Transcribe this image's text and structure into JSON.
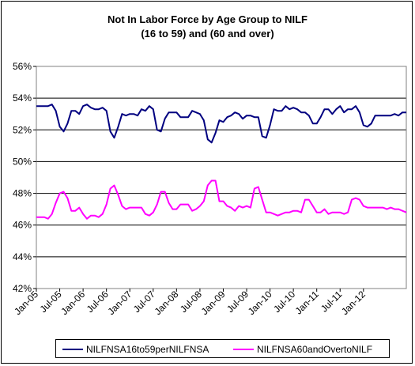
{
  "chart_data": {
    "type": "line",
    "title": "Not In Labor Force by Age Group to NILF",
    "subtitle": "(16 to 59) and (60 and over)",
    "xlabel": "",
    "ylabel": "",
    "ylim": [
      42,
      56
    ],
    "y_ticks": [
      "42%",
      "44%",
      "46%",
      "48%",
      "50%",
      "52%",
      "54%",
      "56%"
    ],
    "x_ticks": [
      "Jan-05",
      "Jul-05",
      "Jan-06",
      "Jul-06",
      "Jan-07",
      "Jul-07",
      "Jan-08",
      "Jul-08",
      "Jan-09",
      "Jul-09",
      "Jan-10",
      "Jul-10",
      "Jan-11",
      "Jul-11",
      "Jan-12"
    ],
    "grid": "horizontal",
    "legend_position": "bottom",
    "series": [
      {
        "name": "NILFNSA16to59perNILFNSA",
        "color": "#000080",
        "values": [
          53.5,
          53.5,
          53.5,
          53.5,
          53.6,
          53.2,
          52.2,
          51.9,
          52.4,
          53.2,
          53.2,
          53.0,
          53.5,
          53.6,
          53.4,
          53.3,
          53.3,
          53.4,
          53.2,
          51.9,
          51.5,
          52.2,
          53.0,
          52.9,
          53.0,
          53.0,
          52.9,
          53.3,
          53.2,
          53.5,
          53.3,
          52.0,
          51.9,
          52.7,
          53.1,
          53.1,
          53.1,
          52.8,
          52.8,
          52.8,
          53.2,
          53.1,
          53.0,
          52.6,
          51.4,
          51.2,
          51.8,
          52.6,
          52.5,
          52.8,
          52.9,
          53.1,
          53.0,
          52.7,
          52.9,
          52.9,
          52.8,
          52.8,
          51.6,
          51.5,
          52.3,
          53.3,
          53.2,
          53.2,
          53.5,
          53.3,
          53.4,
          53.3,
          53.1,
          53.1,
          52.9,
          52.4,
          52.4,
          52.8,
          53.3,
          53.3,
          53.0,
          53.3,
          53.5,
          53.1,
          53.3,
          53.3,
          53.5,
          53.1,
          52.3,
          52.2,
          52.4,
          52.9,
          52.9,
          52.9,
          52.9,
          52.9,
          53.0,
          52.9,
          53.1,
          53.1
        ]
      },
      {
        "name": "NILFNSA60andOvertoNILF",
        "color": "#FF00FF",
        "values": [
          46.5,
          46.5,
          46.5,
          46.4,
          46.7,
          47.4,
          48.0,
          48.1,
          47.7,
          46.9,
          46.9,
          47.1,
          46.7,
          46.4,
          46.6,
          46.6,
          46.5,
          46.7,
          47.3,
          48.3,
          48.5,
          47.9,
          47.2,
          47.0,
          47.1,
          47.1,
          47.1,
          47.1,
          46.7,
          46.6,
          46.8,
          47.3,
          48.1,
          48.1,
          47.4,
          47.0,
          47.0,
          47.3,
          47.3,
          47.3,
          46.9,
          47.0,
          47.2,
          47.5,
          48.5,
          48.8,
          48.8,
          47.5,
          47.5,
          47.2,
          47.1,
          46.9,
          47.2,
          47.1,
          47.2,
          47.1,
          48.3,
          48.4,
          47.6,
          46.8,
          46.8,
          46.7,
          46.6,
          46.7,
          46.8,
          46.8,
          46.9,
          46.9,
          46.8,
          47.6,
          47.6,
          47.2,
          46.8,
          46.8,
          47.0,
          46.7,
          46.8,
          46.8,
          46.8,
          46.7,
          46.8,
          47.6,
          47.7,
          47.6,
          47.2,
          47.1,
          47.1,
          47.1,
          47.1,
          47.1,
          47.0,
          47.1,
          47.0,
          47.0,
          46.9,
          46.8
        ]
      }
    ]
  }
}
